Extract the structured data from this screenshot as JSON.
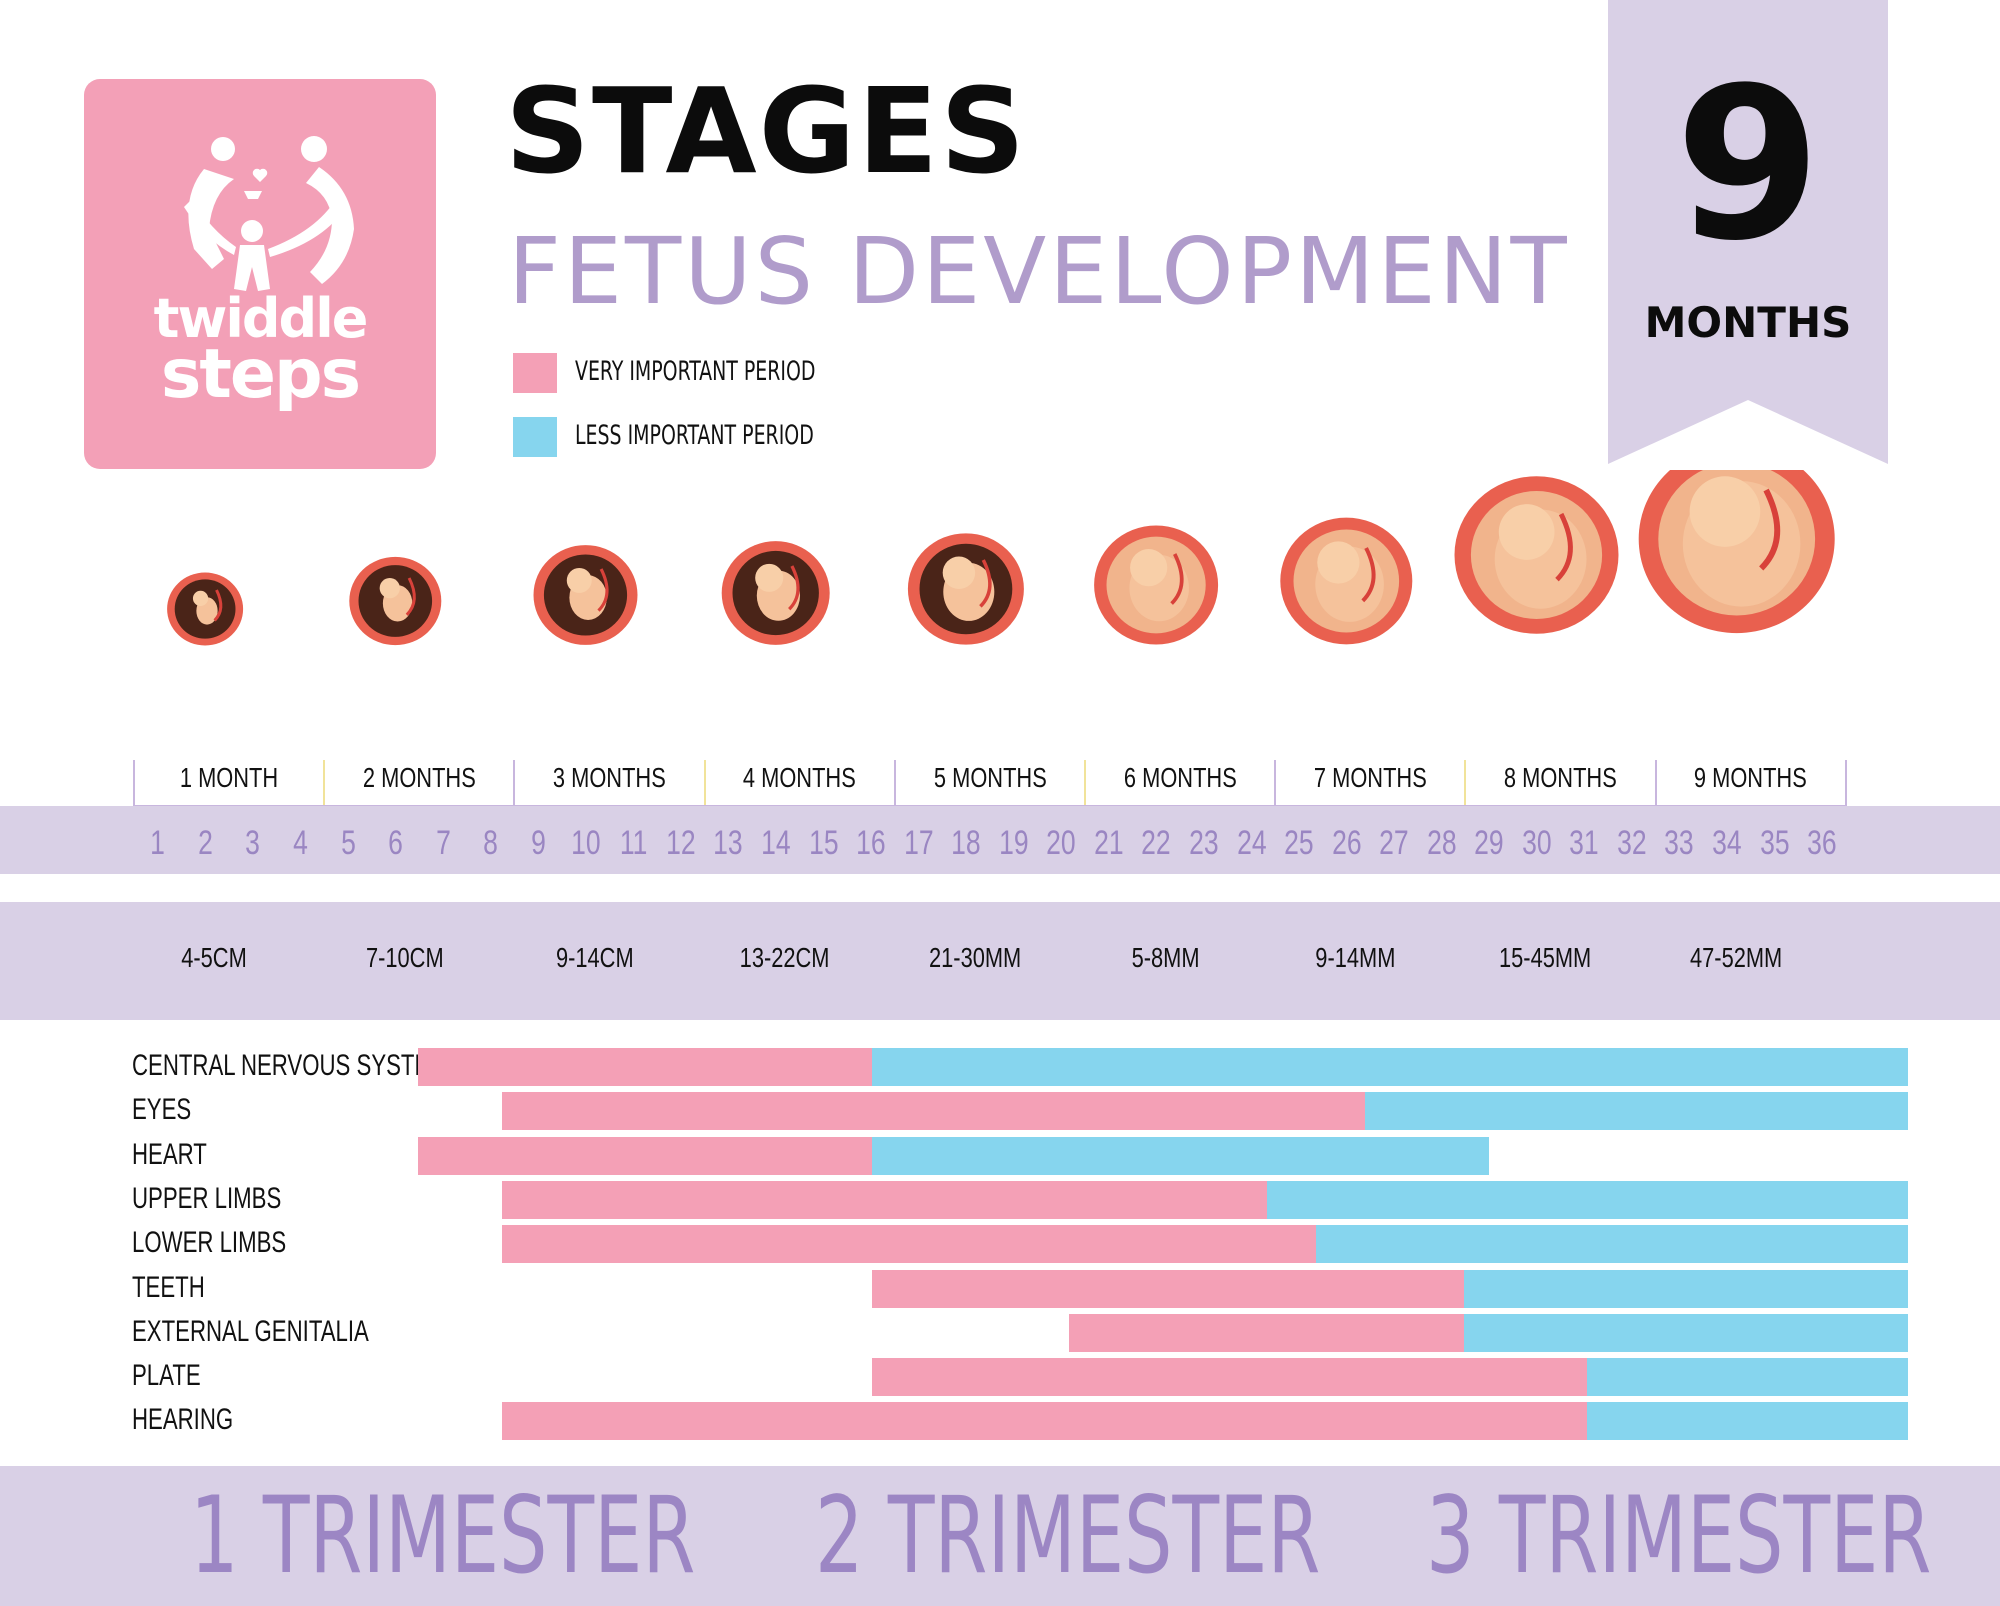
{
  "logo": {
    "line1": "twiddle",
    "line2": "steps"
  },
  "header": {
    "title": "STAGES",
    "subtitle": "FETUS DEVELOPMENT",
    "ribbon_number": "9",
    "ribbon_label": "MONTHS"
  },
  "legend": [
    {
      "label": "VERY IMPORTANT PERIOD",
      "color": "#f4a0b6"
    },
    {
      "label": "LESS IMPORTANT PERIOD",
      "color": "#86d5ee"
    }
  ],
  "months": [
    "1 MONTH",
    "2 MONTHS",
    "3 MONTHS",
    "4 MONTHS",
    "5 MONTHS",
    "6 MONTHS",
    "7 MONTHS",
    "8 MONTHS",
    "9 MONTHS"
  ],
  "weeks": [
    "1",
    "2",
    "3",
    "4",
    "5",
    "6",
    "7",
    "8",
    "9",
    "10",
    "11",
    "12",
    "13",
    "14",
    "15",
    "16",
    "17",
    "18",
    "19",
    "20",
    "21",
    "22",
    "23",
    "24",
    "25",
    "26",
    "27",
    "28",
    "29",
    "30",
    "31",
    "32",
    "33",
    "34",
    "35",
    "36"
  ],
  "sizes": [
    "4-5CM",
    "7-10CM",
    "9-14CM",
    "13-22CM",
    "21-30MM",
    "5-8MM",
    "9-14MM",
    "15-45MM",
    "47-52MM"
  ],
  "trimesters": [
    "1 TRIMESTER",
    "2 TRIMESTER",
    "3 TRIMESTER"
  ],
  "colors": {
    "very": "#f4a0b6",
    "less": "#86d5ee",
    "lavender": "#d9d0e6",
    "accent": "#b09ccb"
  },
  "chart_data": {
    "type": "bar",
    "orientation": "horizontal-gantt",
    "x_unit": "week",
    "xlim": [
      1,
      36
    ],
    "categories": [
      "CENTRAL  NERVOUS SYSTEM",
      "EYES",
      "HEART",
      "UPPER LIMBS",
      "LOWER LIMBS",
      "TEETH",
      "EXTERNAL GENITALIA",
      "PLATE",
      "HEARING"
    ],
    "series": [
      {
        "name": "VERY IMPORTANT PERIOD",
        "ranges": [
          [
            2.5,
            16
          ],
          [
            8.5,
            26
          ],
          [
            4.5,
            16
          ],
          [
            8.5,
            24
          ],
          [
            8.5,
            25
          ],
          [
            16,
            28
          ],
          [
            20,
            28
          ],
          [
            16,
            30.5
          ],
          [
            8.5,
            30.5
          ]
        ]
      },
      {
        "name": "LESS IMPORTANT PERIOD",
        "ranges": [
          [
            16,
            37
          ],
          [
            26,
            37
          ],
          [
            16,
            28.5
          ],
          [
            24,
            37
          ],
          [
            25,
            37
          ],
          [
            28,
            37
          ],
          [
            28,
            37
          ],
          [
            30.5,
            37
          ],
          [
            30.5,
            37
          ]
        ]
      }
    ]
  }
}
